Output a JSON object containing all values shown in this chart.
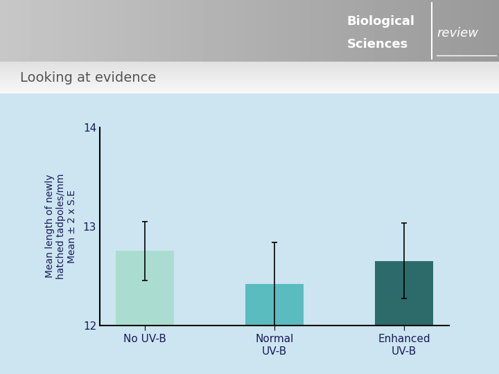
{
  "categories": [
    "No UV-B",
    "Normal\nUV-B",
    "Enhanced\nUV-B"
  ],
  "values": [
    12.75,
    12.42,
    12.65
  ],
  "errors": [
    0.3,
    0.42,
    0.38
  ],
  "bar_colors": [
    "#aaddd0",
    "#5bbcbf",
    "#2d6b6b"
  ],
  "bar_width": 0.45,
  "ylim": [
    12,
    14
  ],
  "yticks": [
    12,
    13,
    14
  ],
  "ylabel": "Mean length of newly\nhatched tadpoles/mm\nMean ± 2 x S.E",
  "title": "Looking at evidence",
  "background_color": "#cce5f0",
  "plot_bg": "#cce5f0",
  "title_color": "#555555",
  "axis_label_color": "#1a1a5e",
  "tick_color": "#1a1a5e",
  "error_capsize": 3,
  "error_color": "black",
  "error_linewidth": 1.2
}
